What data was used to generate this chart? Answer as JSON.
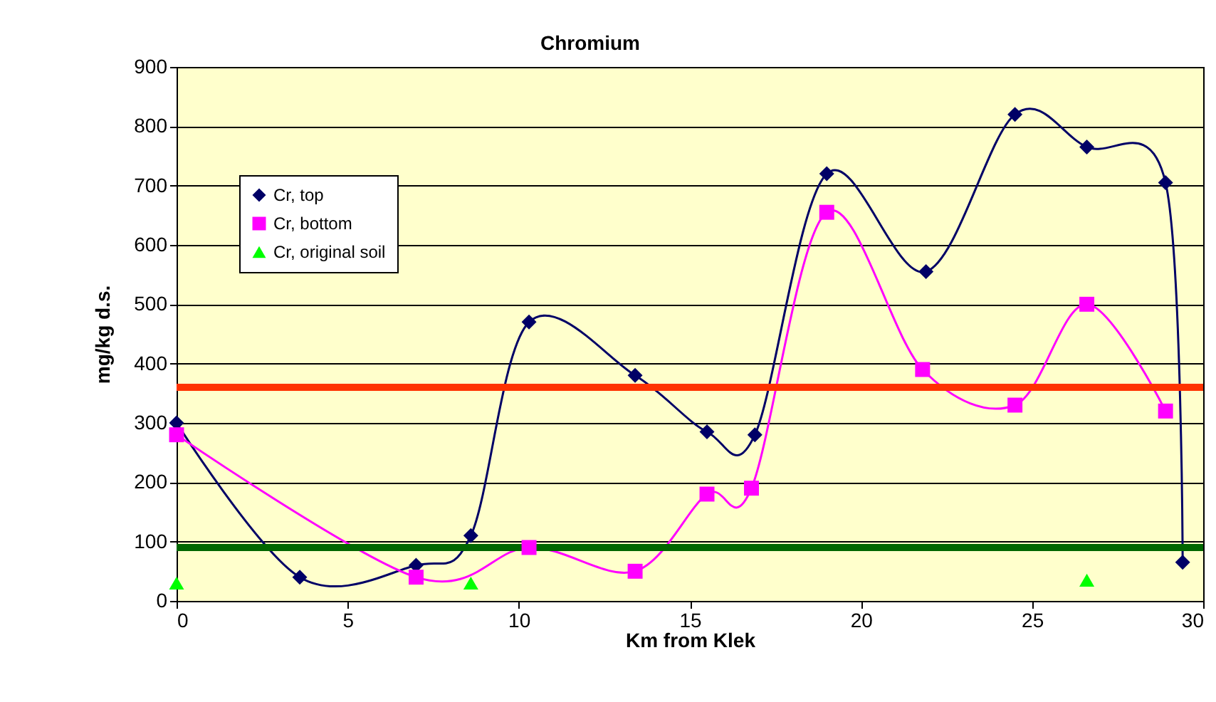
{
  "chart_data": {
    "type": "line",
    "title": "Chromium",
    "xlabel": "Km from Klek",
    "ylabel": "mg/kg d.s.",
    "xlim": [
      0,
      30
    ],
    "xticks": [
      0,
      5,
      10,
      15,
      20,
      25,
      30
    ],
    "ylim": [
      0,
      900
    ],
    "yticks": [
      0,
      100,
      200,
      300,
      400,
      500,
      600,
      700,
      800,
      900
    ],
    "grid": "y",
    "legend": "top left",
    "series": [
      {
        "name": "Cr, top",
        "marker": "diamond",
        "color": "#000066",
        "x": [
          0,
          3.6,
          7.0,
          8.6,
          10.3,
          13.4,
          15.5,
          16.9,
          19.0,
          21.9,
          24.5,
          26.6,
          28.9,
          29.4
        ],
        "values": [
          300,
          40,
          60,
          110,
          470,
          380,
          285,
          280,
          720,
          555,
          820,
          765,
          705,
          65
        ]
      },
      {
        "name": "Cr, bottom",
        "marker": "square",
        "color": "#ff00ff",
        "x": [
          0,
          7.0,
          10.3,
          13.4,
          15.5,
          16.8,
          19.0,
          21.8,
          24.5,
          26.6,
          28.9
        ],
        "values": [
          280,
          40,
          90,
          50,
          180,
          190,
          655,
          390,
          330,
          500,
          320
        ]
      },
      {
        "name": "Cr, original soil",
        "type": "scatter",
        "marker": "triangle",
        "color": "#00ff00",
        "x": [
          0,
          8.6,
          26.6
        ],
        "values": [
          30,
          30,
          35
        ]
      }
    ],
    "ref_lines": [
      {
        "axis": "y",
        "value": 360,
        "color": "#ff3300"
      },
      {
        "axis": "y",
        "value": 90,
        "color": "#006600"
      }
    ]
  }
}
